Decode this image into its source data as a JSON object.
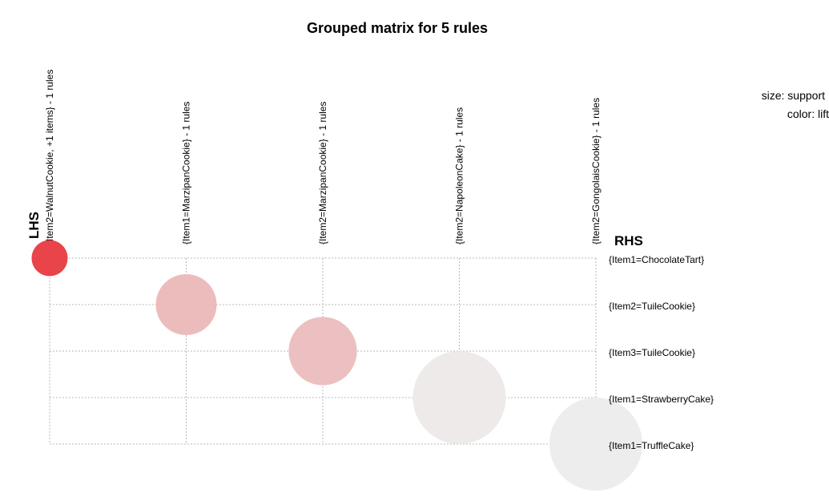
{
  "chart_data": {
    "type": "scatter",
    "title": "Grouped matrix for 5 rules",
    "lhs_label": "LHS",
    "rhs_label": "RHS",
    "legend": {
      "size_text": "size: support",
      "color_text": "color: lift"
    },
    "lhs_groups": [
      "{Item2=WalnutCookie, +1 items} - 1 rules",
      "{Item1=MarzipanCookie} - 1 rules",
      "{Item2=MarzipanCookie} - 1 rules",
      "{Item2=NapoleonCake} - 1 rules",
      "{Item2=GongolaisCookie} - 1 rules"
    ],
    "rhs_items": [
      "{Item1=ChocolateTart}",
      "{Item2=TuileCookie}",
      "{Item3=TuileCookie}",
      "{Item1=StrawberryCake}",
      "{Item1=TruffleCake}"
    ],
    "points": [
      {
        "lhs": 0,
        "rhs": 0,
        "support_rel": 0.15,
        "color": "#e8444a"
      },
      {
        "lhs": 1,
        "rhs": 1,
        "support_rel": 0.43,
        "color": "#ecbcbc"
      },
      {
        "lhs": 2,
        "rhs": 2,
        "support_rel": 0.54,
        "color": "#ecc0c0"
      },
      {
        "lhs": 3,
        "rhs": 3,
        "support_rel": 1.0,
        "color": "#eeeaea"
      },
      {
        "lhs": 4,
        "rhs": 4,
        "support_rel": 1.0,
        "color": "#eeeded"
      }
    ]
  }
}
